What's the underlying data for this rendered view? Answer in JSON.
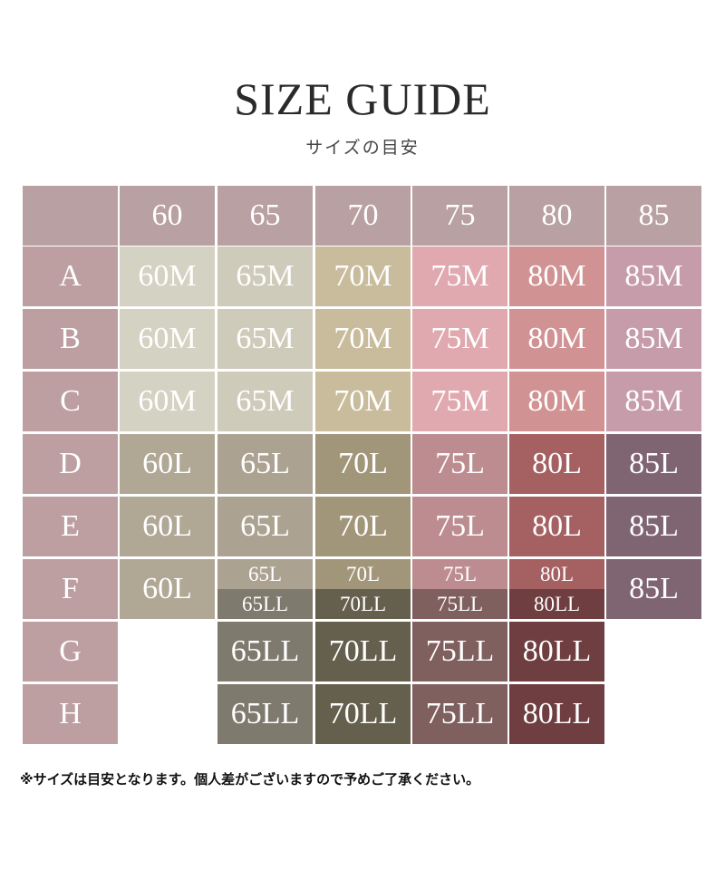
{
  "title": "SIZE GUIDE",
  "subtitle": "サイズの目安",
  "header": {
    "color": "#b9a0a2",
    "columns": [
      "60",
      "65",
      "70",
      "75",
      "80",
      "85"
    ]
  },
  "row_label_color": "#bd9fa2",
  "rows": [
    {
      "label": "A",
      "cells": [
        {
          "text": "60M",
          "color": "#d4d2c3"
        },
        {
          "text": "65M",
          "color": "#cfcbbb"
        },
        {
          "text": "70M",
          "color": "#c8bc9c"
        },
        {
          "text": "75M",
          "color": "#e0a9af"
        },
        {
          "text": "80M",
          "color": "#d19294"
        },
        {
          "text": "85M",
          "color": "#c69cab"
        }
      ]
    },
    {
      "label": "B",
      "cells": [
        {
          "text": "60M",
          "color": "#d4d2c3"
        },
        {
          "text": "65M",
          "color": "#cfcbbb"
        },
        {
          "text": "70M",
          "color": "#c8bc9c"
        },
        {
          "text": "75M",
          "color": "#e0a9af"
        },
        {
          "text": "80M",
          "color": "#d19294"
        },
        {
          "text": "85M",
          "color": "#c69cab"
        }
      ]
    },
    {
      "label": "C",
      "cells": [
        {
          "text": "60M",
          "color": "#d4d2c3"
        },
        {
          "text": "65M",
          "color": "#cfcbbb"
        },
        {
          "text": "70M",
          "color": "#c8bc9c"
        },
        {
          "text": "75M",
          "color": "#e0a9af"
        },
        {
          "text": "80M",
          "color": "#d19294"
        },
        {
          "text": "85M",
          "color": "#c69cab"
        }
      ]
    },
    {
      "label": "D",
      "cells": [
        {
          "text": "60L",
          "color": "#b0a795"
        },
        {
          "text": "65L",
          "color": "#aca291"
        },
        {
          "text": "70L",
          "color": "#a19679"
        },
        {
          "text": "75L",
          "color": "#bd8c90"
        },
        {
          "text": "80L",
          "color": "#a56062"
        },
        {
          "text": "85L",
          "color": "#7f6572"
        }
      ]
    },
    {
      "label": "E",
      "cells": [
        {
          "text": "60L",
          "color": "#b0a795"
        },
        {
          "text": "65L",
          "color": "#aca291"
        },
        {
          "text": "70L",
          "color": "#a19679"
        },
        {
          "text": "75L",
          "color": "#bd8c90"
        },
        {
          "text": "80L",
          "color": "#a56062"
        },
        {
          "text": "85L",
          "color": "#7f6572"
        }
      ]
    },
    {
      "label": "F",
      "cells": [
        {
          "text": "60L",
          "color": "#b0a795"
        },
        {
          "top": "65L",
          "top_color": "#aca291",
          "bottom": "65LL",
          "bottom_color": "#7e7a6e"
        },
        {
          "top": "70L",
          "top_color": "#a19679",
          "bottom": "70LL",
          "bottom_color": "#655f4d"
        },
        {
          "top": "75L",
          "top_color": "#bd8c90",
          "bottom": "75LL",
          "bottom_color": "#80605f"
        },
        {
          "top": "80L",
          "top_color": "#a56062",
          "bottom": "80LL",
          "bottom_color": "#6e3e40"
        },
        {
          "text": "85L",
          "color": "#7f6572"
        }
      ]
    },
    {
      "label": "G",
      "cells": [
        null,
        {
          "text": "65LL",
          "color": "#7e7a6e"
        },
        {
          "text": "70LL",
          "color": "#655f4d"
        },
        {
          "text": "75LL",
          "color": "#80605f"
        },
        {
          "text": "80LL",
          "color": "#6e3e40"
        },
        null
      ]
    },
    {
      "label": "H",
      "cells": [
        null,
        {
          "text": "65LL",
          "color": "#7e7a6e"
        },
        {
          "text": "70LL",
          "color": "#655f4d"
        },
        {
          "text": "75LL",
          "color": "#80605f"
        },
        {
          "text": "80LL",
          "color": "#6e3e40"
        },
        null
      ]
    }
  ],
  "note": "※サイズは目安となります。個人差がございますので予めご了承ください。"
}
